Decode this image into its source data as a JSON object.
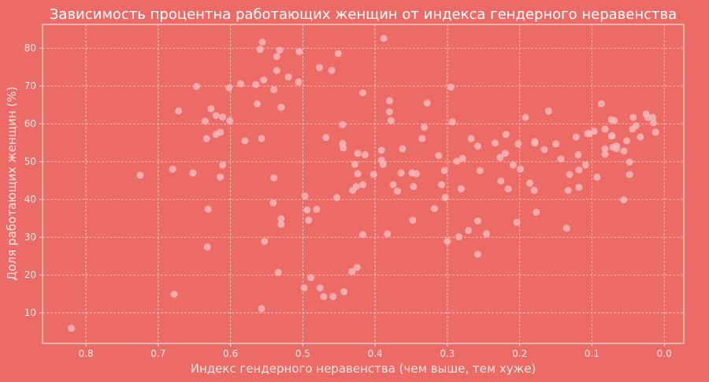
{
  "chart_data": {
    "type": "scatter",
    "title": "Зависимость процентна работающих женщин от индекса гендерного неравенства",
    "xlabel": "Индекс гендерного неравенства (чем выше, тем хуже)",
    "ylabel": "Доля работающих женщин (%)",
    "xlim": [
      0.86,
      -0.027
    ],
    "ylim": [
      1.9,
      86.3
    ],
    "x_inverted": true,
    "grid": true,
    "xticks": [
      0.8,
      0.7,
      0.6,
      0.5,
      0.4,
      0.3,
      0.2,
      0.1,
      0.0
    ],
    "xtick_labels": [
      "0.8",
      "0.7",
      "0.6",
      "0.5",
      "0.4",
      "0.3",
      "0.2",
      "0.1",
      "0.0"
    ],
    "yticks": [
      10,
      20,
      30,
      40,
      50,
      60,
      70,
      80
    ],
    "ytick_labels": [
      "10",
      "20",
      "30",
      "40",
      "50",
      "60",
      "70",
      "80"
    ],
    "colors": {
      "background": "#ec6b66",
      "point": "#f7b6b8",
      "grid": "#f8d0ce",
      "text": "#ffffff"
    },
    "points": [
      [
        0.82,
        5.9
      ],
      [
        0.725,
        46.4
      ],
      [
        0.68,
        48.0
      ],
      [
        0.678,
        14.9
      ],
      [
        0.672,
        63.4
      ],
      [
        0.652,
        47.0
      ],
      [
        0.647,
        69.9
      ],
      [
        0.635,
        60.7
      ],
      [
        0.633,
        56.1
      ],
      [
        0.631,
        37.4
      ],
      [
        0.632,
        27.4
      ],
      [
        0.627,
        64.0
      ],
      [
        0.62,
        62.2
      ],
      [
        0.62,
        57.2
      ],
      [
        0.611,
        61.8
      ],
      [
        0.614,
        57.8
      ],
      [
        0.611,
        49.1
      ],
      [
        0.614,
        45.9
      ],
      [
        0.602,
        69.5
      ],
      [
        0.601,
        60.8
      ],
      [
        0.586,
        70.6
      ],
      [
        0.58,
        55.5
      ],
      [
        0.565,
        70.4
      ],
      [
        0.563,
        65.3
      ],
      [
        0.559,
        79.7
      ],
      [
        0.556,
        81.6
      ],
      [
        0.557,
        56.1
      ],
      [
        0.554,
        71.6
      ],
      [
        0.557,
        11.1
      ],
      [
        0.553,
        28.9
      ],
      [
        0.54,
        69.0
      ],
      [
        0.54,
        45.7
      ],
      [
        0.541,
        39.1
      ],
      [
        0.536,
        77.8
      ],
      [
        0.536,
        74.1
      ],
      [
        0.532,
        79.5
      ],
      [
        0.534,
        20.7
      ],
      [
        0.53,
        64.4
      ],
      [
        0.53,
        34.9
      ],
      [
        0.53,
        33.4
      ],
      [
        0.52,
        72.4
      ],
      [
        0.505,
        79.1
      ],
      [
        0.506,
        71.1
      ],
      [
        0.497,
        40.9
      ],
      [
        0.494,
        37.2
      ],
      [
        0.492,
        34.5
      ],
      [
        0.498,
        16.6
      ],
      [
        0.489,
        19.3
      ],
      [
        0.481,
        37.4
      ],
      [
        0.477,
        74.9
      ],
      [
        0.476,
        16.6
      ],
      [
        0.471,
        14.3
      ],
      [
        0.468,
        56.4
      ],
      [
        0.46,
        74.1
      ],
      [
        0.458,
        14.3
      ],
      [
        0.453,
        40.5
      ],
      [
        0.451,
        78.6
      ],
      [
        0.445,
        59.8
      ],
      [
        0.445,
        54.8
      ],
      [
        0.444,
        53.6
      ],
      [
        0.443,
        15.6
      ],
      [
        0.432,
        20.9
      ],
      [
        0.428,
        49.3
      ],
      [
        0.431,
        42.4
      ],
      [
        0.426,
        43.4
      ],
      [
        0.425,
        22.0
      ],
      [
        0.424,
        52.2
      ],
      [
        0.424,
        46.8
      ],
      [
        0.417,
        43.9
      ],
      [
        0.417,
        30.7
      ],
      [
        0.417,
        68.2
      ],
      [
        0.414,
        51.8
      ],
      [
        0.402,
        46.6
      ],
      [
        0.388,
        82.6
      ],
      [
        0.391,
        53.0
      ],
      [
        0.391,
        50.4
      ],
      [
        0.389,
        49.3
      ],
      [
        0.383,
        30.9
      ],
      [
        0.38,
        66.1
      ],
      [
        0.38,
        63.2
      ],
      [
        0.378,
        60.9
      ],
      [
        0.375,
        43.9
      ],
      [
        0.369,
        42.2
      ],
      [
        0.364,
        47.0
      ],
      [
        0.362,
        53.4
      ],
      [
        0.349,
        47.0
      ],
      [
        0.343,
        46.8
      ],
      [
        0.347,
        43.4
      ],
      [
        0.348,
        34.5
      ],
      [
        0.335,
        56.1
      ],
      [
        0.332,
        59.1
      ],
      [
        0.328,
        65.5
      ],
      [
        0.318,
        37.6
      ],
      [
        0.312,
        51.6
      ],
      [
        0.308,
        43.9
      ],
      [
        0.304,
        47.6
      ],
      [
        0.303,
        40.5
      ],
      [
        0.3,
        28.9
      ],
      [
        0.295,
        69.7
      ],
      [
        0.293,
        60.5
      ],
      [
        0.287,
        50.1
      ],
      [
        0.279,
        50.9
      ],
      [
        0.281,
        42.8
      ],
      [
        0.284,
        30.1
      ],
      [
        0.271,
        31.8
      ],
      [
        0.267,
        56.1
      ],
      [
        0.258,
        54.1
      ],
      [
        0.258,
        34.3
      ],
      [
        0.258,
        25.5
      ],
      [
        0.255,
        47.6
      ],
      [
        0.246,
        30.9
      ],
      [
        0.234,
        54.9
      ],
      [
        0.227,
        51.1
      ],
      [
        0.22,
        52.2
      ],
      [
        0.219,
        57.2
      ],
      [
        0.226,
        44.9
      ],
      [
        0.216,
        42.8
      ],
      [
        0.209,
        49.1
      ],
      [
        0.199,
        48.0
      ],
      [
        0.202,
        54.7
      ],
      [
        0.204,
        33.9
      ],
      [
        0.192,
        61.7
      ],
      [
        0.186,
        44.3
      ],
      [
        0.18,
        42.4
      ],
      [
        0.179,
        54.9
      ],
      [
        0.179,
        55.3
      ],
      [
        0.177,
        36.6
      ],
      [
        0.166,
        53.2
      ],
      [
        0.16,
        63.4
      ],
      [
        0.15,
        54.7
      ],
      [
        0.143,
        50.7
      ],
      [
        0.135,
        32.4
      ],
      [
        0.133,
        42.4
      ],
      [
        0.131,
        46.6
      ],
      [
        0.122,
        56.5
      ],
      [
        0.119,
        51.8
      ],
      [
        0.118,
        47.8
      ],
      [
        0.118,
        43.2
      ],
      [
        0.109,
        49.1
      ],
      [
        0.106,
        57.4
      ],
      [
        0.104,
        57.4
      ],
      [
        0.097,
        58.0
      ],
      [
        0.093,
        45.9
      ],
      [
        0.087,
        65.3
      ],
      [
        0.082,
        58.6
      ],
      [
        0.082,
        53.4
      ],
      [
        0.082,
        52.0
      ],
      [
        0.073,
        61.1
      ],
      [
        0.069,
        60.9
      ],
      [
        0.073,
        56.8
      ],
      [
        0.072,
        56.8
      ],
      [
        0.071,
        53.8
      ],
      [
        0.066,
        54.1
      ],
      [
        0.066,
        53.4
      ],
      [
        0.056,
        52.8
      ],
      [
        0.052,
        55.5
      ],
      [
        0.048,
        49.9
      ],
      [
        0.048,
        46.6
      ],
      [
        0.056,
        39.9
      ],
      [
        0.044,
        58.6
      ],
      [
        0.043,
        61.7
      ],
      [
        0.039,
        59.5
      ],
      [
        0.033,
        56.5
      ],
      [
        0.025,
        62.6
      ],
      [
        0.023,
        61.7
      ],
      [
        0.016,
        61.7
      ],
      [
        0.015,
        60.3
      ],
      [
        0.012,
        57.8
      ]
    ]
  }
}
